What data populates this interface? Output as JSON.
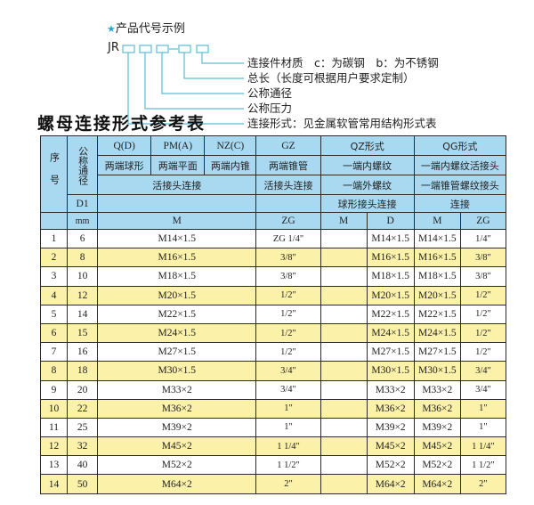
{
  "example": {
    "title": "产品代号示例",
    "star_icon": "star-icon",
    "code_prefix": "JR",
    "labels": [
      "连接件材质　c：为碳钢　b：为不锈钢",
      "总长（长度可根据用户要求定制）",
      "公称通径",
      "公称压力",
      "连接形式：见金属软管常用结构形式表"
    ],
    "line_color": "#5bbcd6"
  },
  "table_title": "螺母连接形式参考表",
  "table": {
    "header": {
      "seq": "序号",
      "nominal": "公称通径",
      "d1": "D1",
      "mm": "mm",
      "q": "Q(D)",
      "pm": "PM(A)",
      "nz": "NZ(C)",
      "gz": "GZ",
      "qz": "QZ形式",
      "qg": "QG形式",
      "q_desc": "两端球形",
      "pm_desc": "两端平面",
      "nz_desc": "两端内锥",
      "gz_desc": "两端锥管",
      "qz_desc1": "一端内螺纹",
      "qg_desc1": "一端内螺纹活接头",
      "union": "活接头连接",
      "gz_union": "活接头连接",
      "qz_desc2": "一端外螺纹",
      "qg_desc2": "一端锥管螺纹接头",
      "qz_desc3": "球形接头连接",
      "qg_desc3": "连接",
      "m": "M",
      "zg": "ZG",
      "qz_m": "M",
      "qz_d": "D",
      "qg_m": "M",
      "qg_zg": "ZG"
    },
    "rows": [
      {
        "n": "1",
        "d": "6",
        "m": "M14×1.5",
        "zg": "ZG 1/4\"",
        "qz_m": "",
        "qz_d": "M14×1.5",
        "qg_m": "M14×1.5",
        "qg_zg": "1/4\""
      },
      {
        "n": "2",
        "d": "8",
        "m": "M16×1.5",
        "zg": "3/8\"",
        "qz_m": "",
        "qz_d": "M16×1.5",
        "qg_m": "M16×1.5",
        "qg_zg": "3/8\""
      },
      {
        "n": "3",
        "d": "10",
        "m": "M18×1.5",
        "zg": "3/8\"",
        "qz_m": "",
        "qz_d": "M18×1.5",
        "qg_m": "M18×1.5",
        "qg_zg": "3/8\""
      },
      {
        "n": "4",
        "d": "12",
        "m": "M20×1.5",
        "zg": "1/2\"",
        "qz_m": "",
        "qz_d": "M20×1.5",
        "qg_m": "M20×1.5",
        "qg_zg": "1/2\""
      },
      {
        "n": "5",
        "d": "14",
        "m": "M22×1.5",
        "zg": "1/2\"",
        "qz_m": "",
        "qz_d": "M22×1.5",
        "qg_m": "M22×1.5",
        "qg_zg": "1/2\""
      },
      {
        "n": "6",
        "d": "15",
        "m": "M24×1.5",
        "zg": "1/2\"",
        "qz_m": "",
        "qz_d": "M24×1.5",
        "qg_m": "M24×1.5",
        "qg_zg": "1/2\""
      },
      {
        "n": "7",
        "d": "16",
        "m": "M27×1.5",
        "zg": "1/2\"",
        "qz_m": "",
        "qz_d": "M27×1.5",
        "qg_m": "M27×1.5",
        "qg_zg": "1/2\""
      },
      {
        "n": "8",
        "d": "18",
        "m": "M30×1.5",
        "zg": "3/4\"",
        "qz_m": "",
        "qz_d": "M30×1.5",
        "qg_m": "M30×1.5",
        "qg_zg": "3/4\""
      },
      {
        "n": "9",
        "d": "20",
        "m": "M33×2",
        "zg": "3/4\"",
        "qz_m": "",
        "qz_d": "M33×2",
        "qg_m": "M33×2",
        "qg_zg": "3/4\""
      },
      {
        "n": "10",
        "d": "22",
        "m": "M36×2",
        "zg": "1\"",
        "qz_m": "",
        "qz_d": "M36×2",
        "qg_m": "M36×2",
        "qg_zg": "1\""
      },
      {
        "n": "11",
        "d": "25",
        "m": "M39×2",
        "zg": "1\"",
        "qz_m": "",
        "qz_d": "M39×2",
        "qg_m": "M39×2",
        "qg_zg": "1\""
      },
      {
        "n": "12",
        "d": "32",
        "m": "M45×2",
        "zg": "1 1/4\"",
        "qz_m": "",
        "qz_d": "M45×2",
        "qg_m": "M45×2",
        "qg_zg": "1 1/4\""
      },
      {
        "n": "13",
        "d": "40",
        "m": "M52×2",
        "zg": "1 1/2\"",
        "qz_m": "",
        "qz_d": "M52×2",
        "qg_m": "M52×2",
        "qg_zg": "1 1/2\""
      },
      {
        "n": "14",
        "d": "50",
        "m": "M64×2",
        "zg": "2\"",
        "qz_m": "",
        "qz_d": "M64×2",
        "qg_m": "M64×2",
        "qg_zg": "2\""
      }
    ],
    "colors": {
      "header": "#a9d9f1",
      "stripe": "#fbf1a8",
      "border": "#2b2b2b"
    }
  }
}
